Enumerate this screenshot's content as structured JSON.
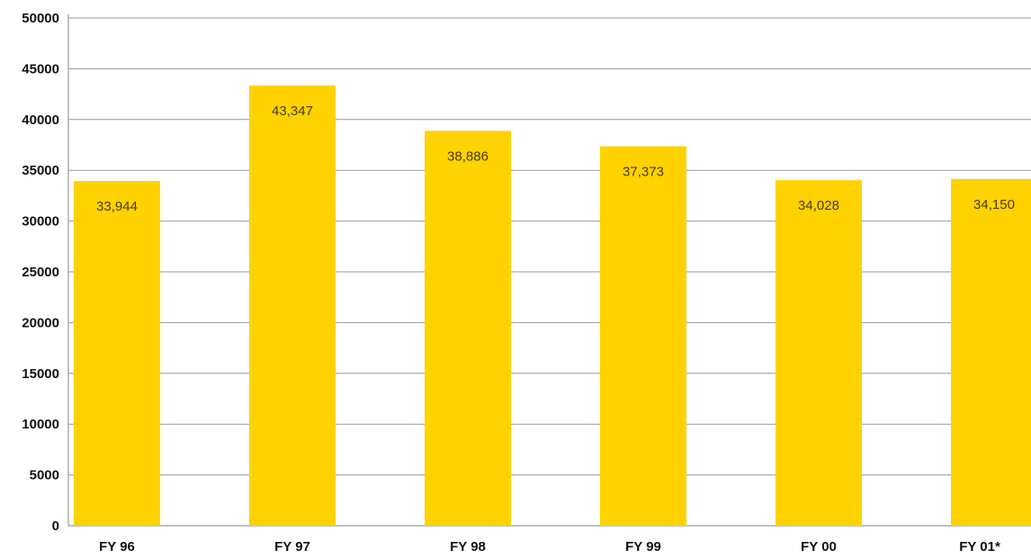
{
  "chart_data": {
    "type": "bar",
    "categories": [
      "FY 96",
      "FY 97",
      "FY 98",
      "FY 99",
      "FY 00",
      "FY 01*"
    ],
    "values": [
      33944,
      43347,
      38886,
      37373,
      34028,
      34150
    ],
    "value_labels": [
      "33,944",
      "43,347",
      "38,886",
      "37,373",
      "34,028",
      "34,150"
    ],
    "ylim": [
      0,
      50000
    ],
    "yticks": [
      0,
      5000,
      10000,
      15000,
      20000,
      25000,
      30000,
      35000,
      40000,
      45000,
      50000
    ],
    "ytick_labels": [
      "0",
      "5000",
      "10000",
      "15000",
      "20000",
      "25000",
      "30000",
      "35000",
      "40000",
      "45000",
      "50000"
    ],
    "grid": true,
    "colors": {
      "bar": "#FFD200",
      "grid": "#9a9a9a",
      "axis": "#9a9a9a"
    }
  }
}
